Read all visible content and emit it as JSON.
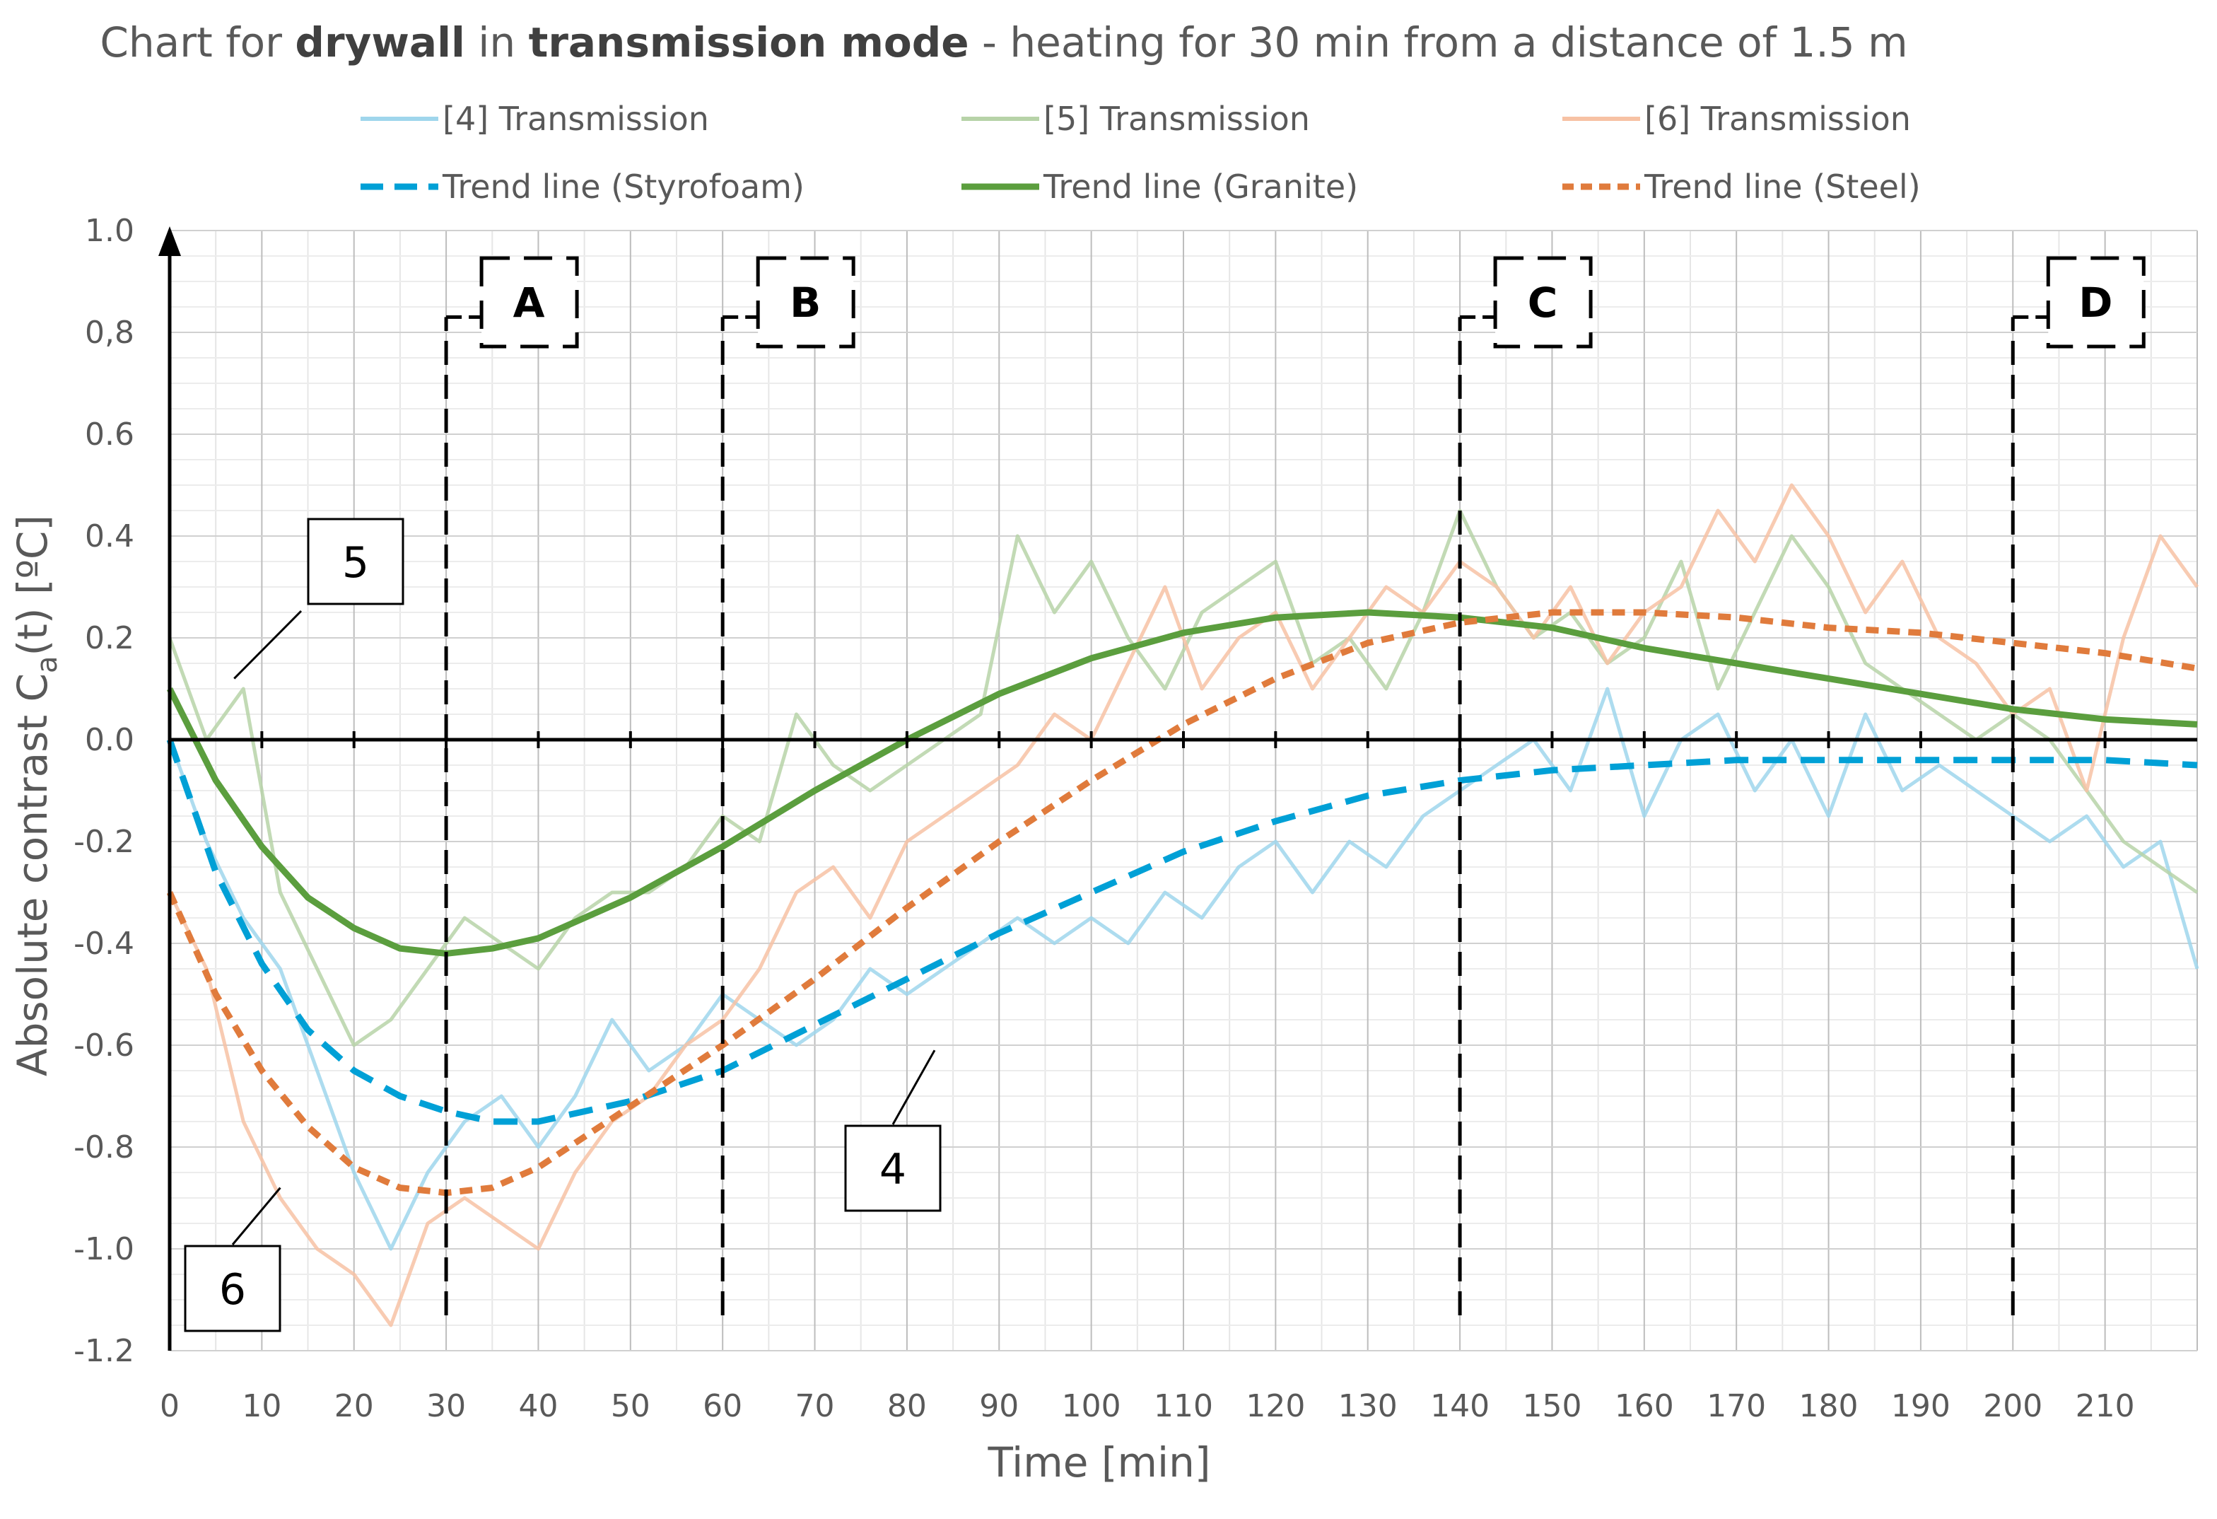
{
  "chart_data": {
    "type": "line",
    "title_parts": [
      {
        "text": "Chart for ",
        "bold": false
      },
      {
        "text": "drywall",
        "bold": true
      },
      {
        "text": " in ",
        "bold": false
      },
      {
        "text": "transmission mode",
        "bold": true
      },
      {
        "text": " - heating for 30 min from a distance of 1.5 m",
        "bold": false
      }
    ],
    "xlabel": "Time [min]",
    "ylabel": "Absolute contrast C",
    "ylabel_subscript": "a",
    "ylabel_suffix": "(t)   [ºC]",
    "xlim": [
      0,
      220
    ],
    "ylim": [
      -1.2,
      1.0
    ],
    "x_ticks": [
      0,
      10,
      20,
      30,
      40,
      50,
      60,
      70,
      80,
      90,
      100,
      110,
      120,
      130,
      140,
      150,
      160,
      170,
      180,
      190,
      200,
      210
    ],
    "x_tick_labels": [
      "0",
      "10",
      "20",
      "30",
      "40",
      "50",
      "60",
      "70",
      "80",
      "90",
      "100",
      "110",
      "120",
      "130",
      "140",
      "150",
      "160",
      "170",
      "180",
      "190",
      "200",
      "210"
    ],
    "y_ticks": [
      1.0,
      0.8,
      0.6,
      0.4,
      0.2,
      0.0,
      -0.2,
      -0.4,
      -0.6,
      -0.8,
      -1.0,
      -1.2
    ],
    "y_tick_labels": [
      "1.0",
      "0,8",
      "0.6",
      "0.4",
      "0.2",
      "0.0",
      "-0.2",
      "-0.4",
      "-0.6",
      "-0.8",
      "-1.0",
      "-1.2"
    ],
    "grid": true,
    "legend": [
      {
        "label": "[4] Transmission",
        "color": "#9fd6ec",
        "style": "solid-light"
      },
      {
        "label": "[5] Transmission",
        "color": "#b7d3a8",
        "style": "solid-light"
      },
      {
        "label": "[6] Transmission",
        "color": "#f7c2a4",
        "style": "solid-light"
      },
      {
        "label": "Trend line (Styrofoam)",
        "color": "#00a0d6",
        "style": "dashed"
      },
      {
        "label": "Trend line (Granite)",
        "color": "#5b9e3e",
        "style": "solid"
      },
      {
        "label": "Trend line (Steel)",
        "color": "#e07b3c",
        "style": "dotted"
      }
    ],
    "series": [
      {
        "name": "[4] Transmission",
        "color": "#9fd6ec",
        "kind": "raw",
        "x": [
          0,
          4,
          8,
          12,
          16,
          20,
          24,
          28,
          32,
          36,
          40,
          44,
          48,
          52,
          56,
          60,
          64,
          68,
          72,
          76,
          80,
          84,
          88,
          92,
          96,
          100,
          104,
          108,
          112,
          116,
          120,
          124,
          128,
          132,
          136,
          140,
          144,
          148,
          152,
          156,
          160,
          164,
          168,
          172,
          176,
          180,
          184,
          188,
          192,
          196,
          200,
          204,
          208,
          212,
          216,
          220
        ],
        "values": [
          0.0,
          -0.2,
          -0.35,
          -0.45,
          -0.65,
          -0.85,
          -1.0,
          -0.85,
          -0.75,
          -0.7,
          -0.8,
          -0.7,
          -0.55,
          -0.65,
          -0.6,
          -0.5,
          -0.55,
          -0.6,
          -0.55,
          -0.45,
          -0.5,
          -0.45,
          -0.4,
          -0.35,
          -0.4,
          -0.35,
          -0.4,
          -0.3,
          -0.35,
          -0.25,
          -0.2,
          -0.3,
          -0.2,
          -0.25,
          -0.15,
          -0.1,
          -0.05,
          0.0,
          -0.1,
          0.1,
          -0.15,
          0.0,
          0.05,
          -0.1,
          0.0,
          -0.15,
          0.05,
          -0.1,
          -0.05,
          -0.1,
          -0.15,
          -0.2,
          -0.15,
          -0.25,
          -0.2,
          -0.45
        ]
      },
      {
        "name": "[5] Transmission",
        "color": "#b7d3a8",
        "kind": "raw",
        "x": [
          0,
          4,
          8,
          12,
          16,
          20,
          24,
          28,
          32,
          36,
          40,
          44,
          48,
          52,
          56,
          60,
          64,
          68,
          72,
          76,
          80,
          84,
          88,
          92,
          96,
          100,
          104,
          108,
          112,
          116,
          120,
          124,
          128,
          132,
          136,
          140,
          144,
          148,
          152,
          156,
          160,
          164,
          168,
          172,
          176,
          180,
          184,
          188,
          192,
          196,
          200,
          204,
          208,
          212,
          216,
          220
        ],
        "values": [
          0.2,
          0.0,
          0.1,
          -0.3,
          -0.45,
          -0.6,
          -0.55,
          -0.45,
          -0.35,
          -0.4,
          -0.45,
          -0.35,
          -0.3,
          -0.3,
          -0.25,
          -0.15,
          -0.2,
          0.05,
          -0.05,
          -0.1,
          -0.05,
          0.0,
          0.05,
          0.4,
          0.25,
          0.35,
          0.2,
          0.1,
          0.25,
          0.3,
          0.35,
          0.15,
          0.2,
          0.1,
          0.25,
          0.45,
          0.3,
          0.2,
          0.25,
          0.15,
          0.2,
          0.35,
          0.1,
          0.25,
          0.4,
          0.3,
          0.15,
          0.1,
          0.05,
          0.0,
          0.05,
          0.0,
          -0.1,
          -0.2,
          -0.25,
          -0.3
        ]
      },
      {
        "name": "[6] Transmission",
        "color": "#f7c2a4",
        "kind": "raw",
        "x": [
          0,
          4,
          8,
          12,
          16,
          20,
          24,
          28,
          32,
          36,
          40,
          44,
          48,
          52,
          56,
          60,
          64,
          68,
          72,
          76,
          80,
          84,
          88,
          92,
          96,
          100,
          104,
          108,
          112,
          116,
          120,
          124,
          128,
          132,
          136,
          140,
          144,
          148,
          152,
          156,
          160,
          164,
          168,
          172,
          176,
          180,
          184,
          188,
          192,
          196,
          200,
          204,
          208,
          212,
          216,
          220
        ],
        "values": [
          -0.3,
          -0.45,
          -0.75,
          -0.9,
          -1.0,
          -1.05,
          -1.15,
          -0.95,
          -0.9,
          -0.95,
          -1.0,
          -0.85,
          -0.75,
          -0.7,
          -0.6,
          -0.55,
          -0.45,
          -0.3,
          -0.25,
          -0.35,
          -0.2,
          -0.15,
          -0.1,
          -0.05,
          0.05,
          0.0,
          0.15,
          0.3,
          0.1,
          0.2,
          0.25,
          0.1,
          0.2,
          0.3,
          0.25,
          0.35,
          0.3,
          0.2,
          0.3,
          0.15,
          0.25,
          0.3,
          0.45,
          0.35,
          0.5,
          0.4,
          0.25,
          0.35,
          0.2,
          0.15,
          0.05,
          0.1,
          -0.1,
          0.2,
          0.4,
          0.3
        ]
      },
      {
        "name": "Trend line (Styrofoam)",
        "color": "#00a0d6",
        "kind": "dashed",
        "x": [
          0,
          5,
          10,
          15,
          20,
          25,
          30,
          35,
          40,
          45,
          50,
          55,
          60,
          70,
          80,
          90,
          100,
          110,
          120,
          130,
          140,
          150,
          160,
          170,
          180,
          190,
          200,
          210,
          220
        ],
        "values": [
          0.0,
          -0.26,
          -0.44,
          -0.57,
          -0.65,
          -0.7,
          -0.73,
          -0.75,
          -0.75,
          -0.73,
          -0.71,
          -0.68,
          -0.65,
          -0.56,
          -0.47,
          -0.38,
          -0.3,
          -0.22,
          -0.16,
          -0.11,
          -0.08,
          -0.06,
          -0.05,
          -0.04,
          -0.04,
          -0.04,
          -0.04,
          -0.04,
          -0.05
        ]
      },
      {
        "name": "Trend line (Granite)",
        "color": "#5b9e3e",
        "kind": "solid",
        "x": [
          0,
          5,
          10,
          15,
          20,
          25,
          30,
          35,
          40,
          45,
          50,
          55,
          60,
          70,
          80,
          90,
          100,
          110,
          120,
          130,
          140,
          150,
          160,
          170,
          180,
          190,
          200,
          210,
          220
        ],
        "values": [
          0.1,
          -0.08,
          -0.21,
          -0.31,
          -0.37,
          -0.41,
          -0.42,
          -0.41,
          -0.39,
          -0.35,
          -0.31,
          -0.26,
          -0.21,
          -0.1,
          0.0,
          0.09,
          0.16,
          0.21,
          0.24,
          0.25,
          0.24,
          0.22,
          0.18,
          0.15,
          0.12,
          0.09,
          0.06,
          0.04,
          0.03
        ]
      },
      {
        "name": "Trend line (Steel)",
        "color": "#e07b3c",
        "kind": "dotted",
        "x": [
          0,
          5,
          10,
          15,
          20,
          25,
          30,
          35,
          40,
          45,
          50,
          55,
          60,
          70,
          80,
          90,
          100,
          110,
          120,
          130,
          140,
          150,
          160,
          170,
          180,
          190,
          200,
          210,
          220
        ],
        "values": [
          -0.3,
          -0.5,
          -0.65,
          -0.76,
          -0.84,
          -0.88,
          -0.89,
          -0.88,
          -0.84,
          -0.78,
          -0.72,
          -0.66,
          -0.6,
          -0.47,
          -0.33,
          -0.2,
          -0.08,
          0.03,
          0.12,
          0.19,
          0.23,
          0.25,
          0.25,
          0.24,
          0.22,
          0.21,
          0.19,
          0.17,
          0.14
        ]
      }
    ],
    "phase_markers": [
      {
        "x": 30,
        "label": "A"
      },
      {
        "x": 60,
        "label": "B"
      },
      {
        "x": 140,
        "label": "C"
      },
      {
        "x": 200,
        "label": "D"
      }
    ],
    "callouts": [
      {
        "label": "5",
        "target_x": 7,
        "target_y": 0.12
      },
      {
        "label": "6",
        "target_x": 12,
        "target_y": -0.88
      },
      {
        "label": "4",
        "target_x": 83,
        "target_y": -0.61
      }
    ]
  }
}
